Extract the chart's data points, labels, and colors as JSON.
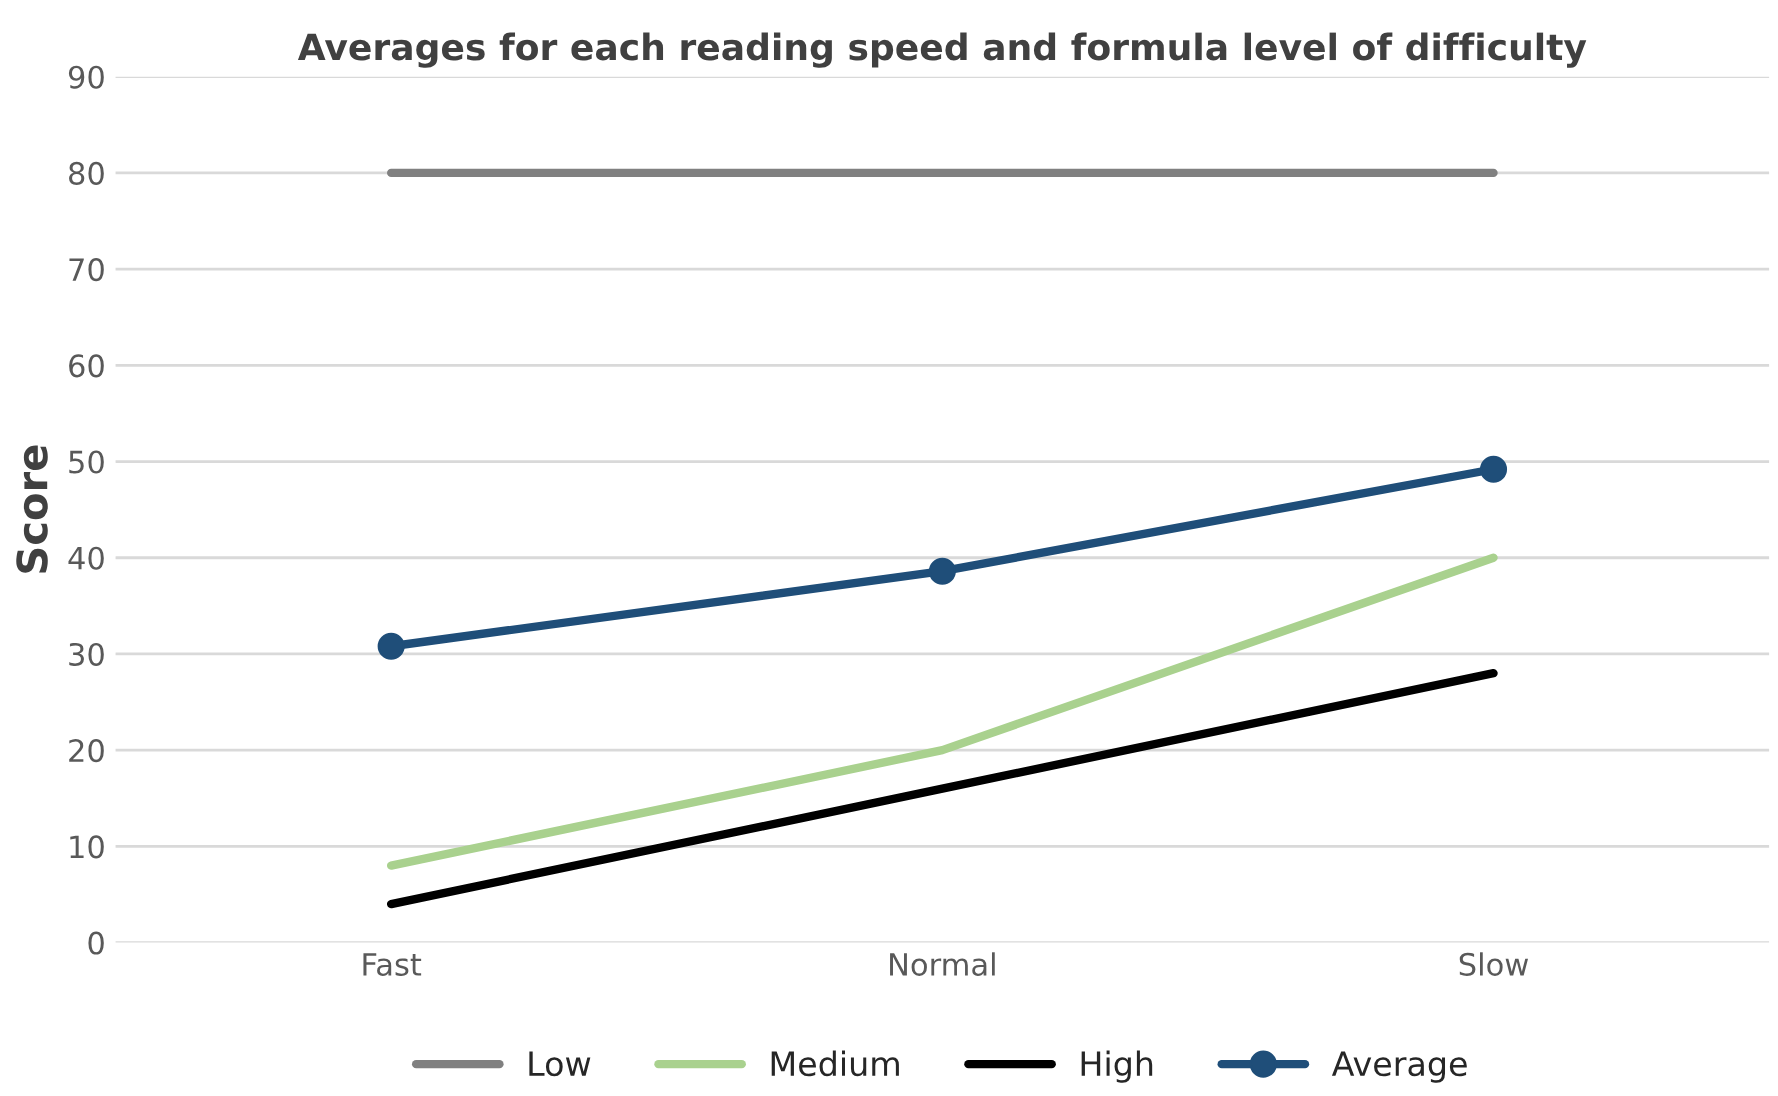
{
  "chart_data": {
    "type": "line",
    "title": "Averages for each reading speed and formula level of difficulty",
    "ylabel": "Score",
    "categories": [
      "Fast",
      "Normal",
      "Slow"
    ],
    "series": [
      {
        "name": "Low",
        "color": "#808080",
        "values": [
          80,
          80,
          80
        ]
      },
      {
        "name": "Medium",
        "color": "#a9d18e",
        "values": [
          8,
          20,
          40
        ]
      },
      {
        "name": "High",
        "color": "#000000",
        "values": [
          4,
          16,
          28
        ]
      },
      {
        "name": "Average",
        "color": "#1f4e79",
        "values": [
          30.8,
          38.6,
          49.2
        ],
        "marker": "circle"
      }
    ],
    "ylim": [
      0,
      90
    ],
    "yticks": [
      0,
      10,
      20,
      30,
      40,
      50,
      60,
      70,
      80,
      90
    ],
    "grid": "y",
    "legend": "bottom"
  }
}
